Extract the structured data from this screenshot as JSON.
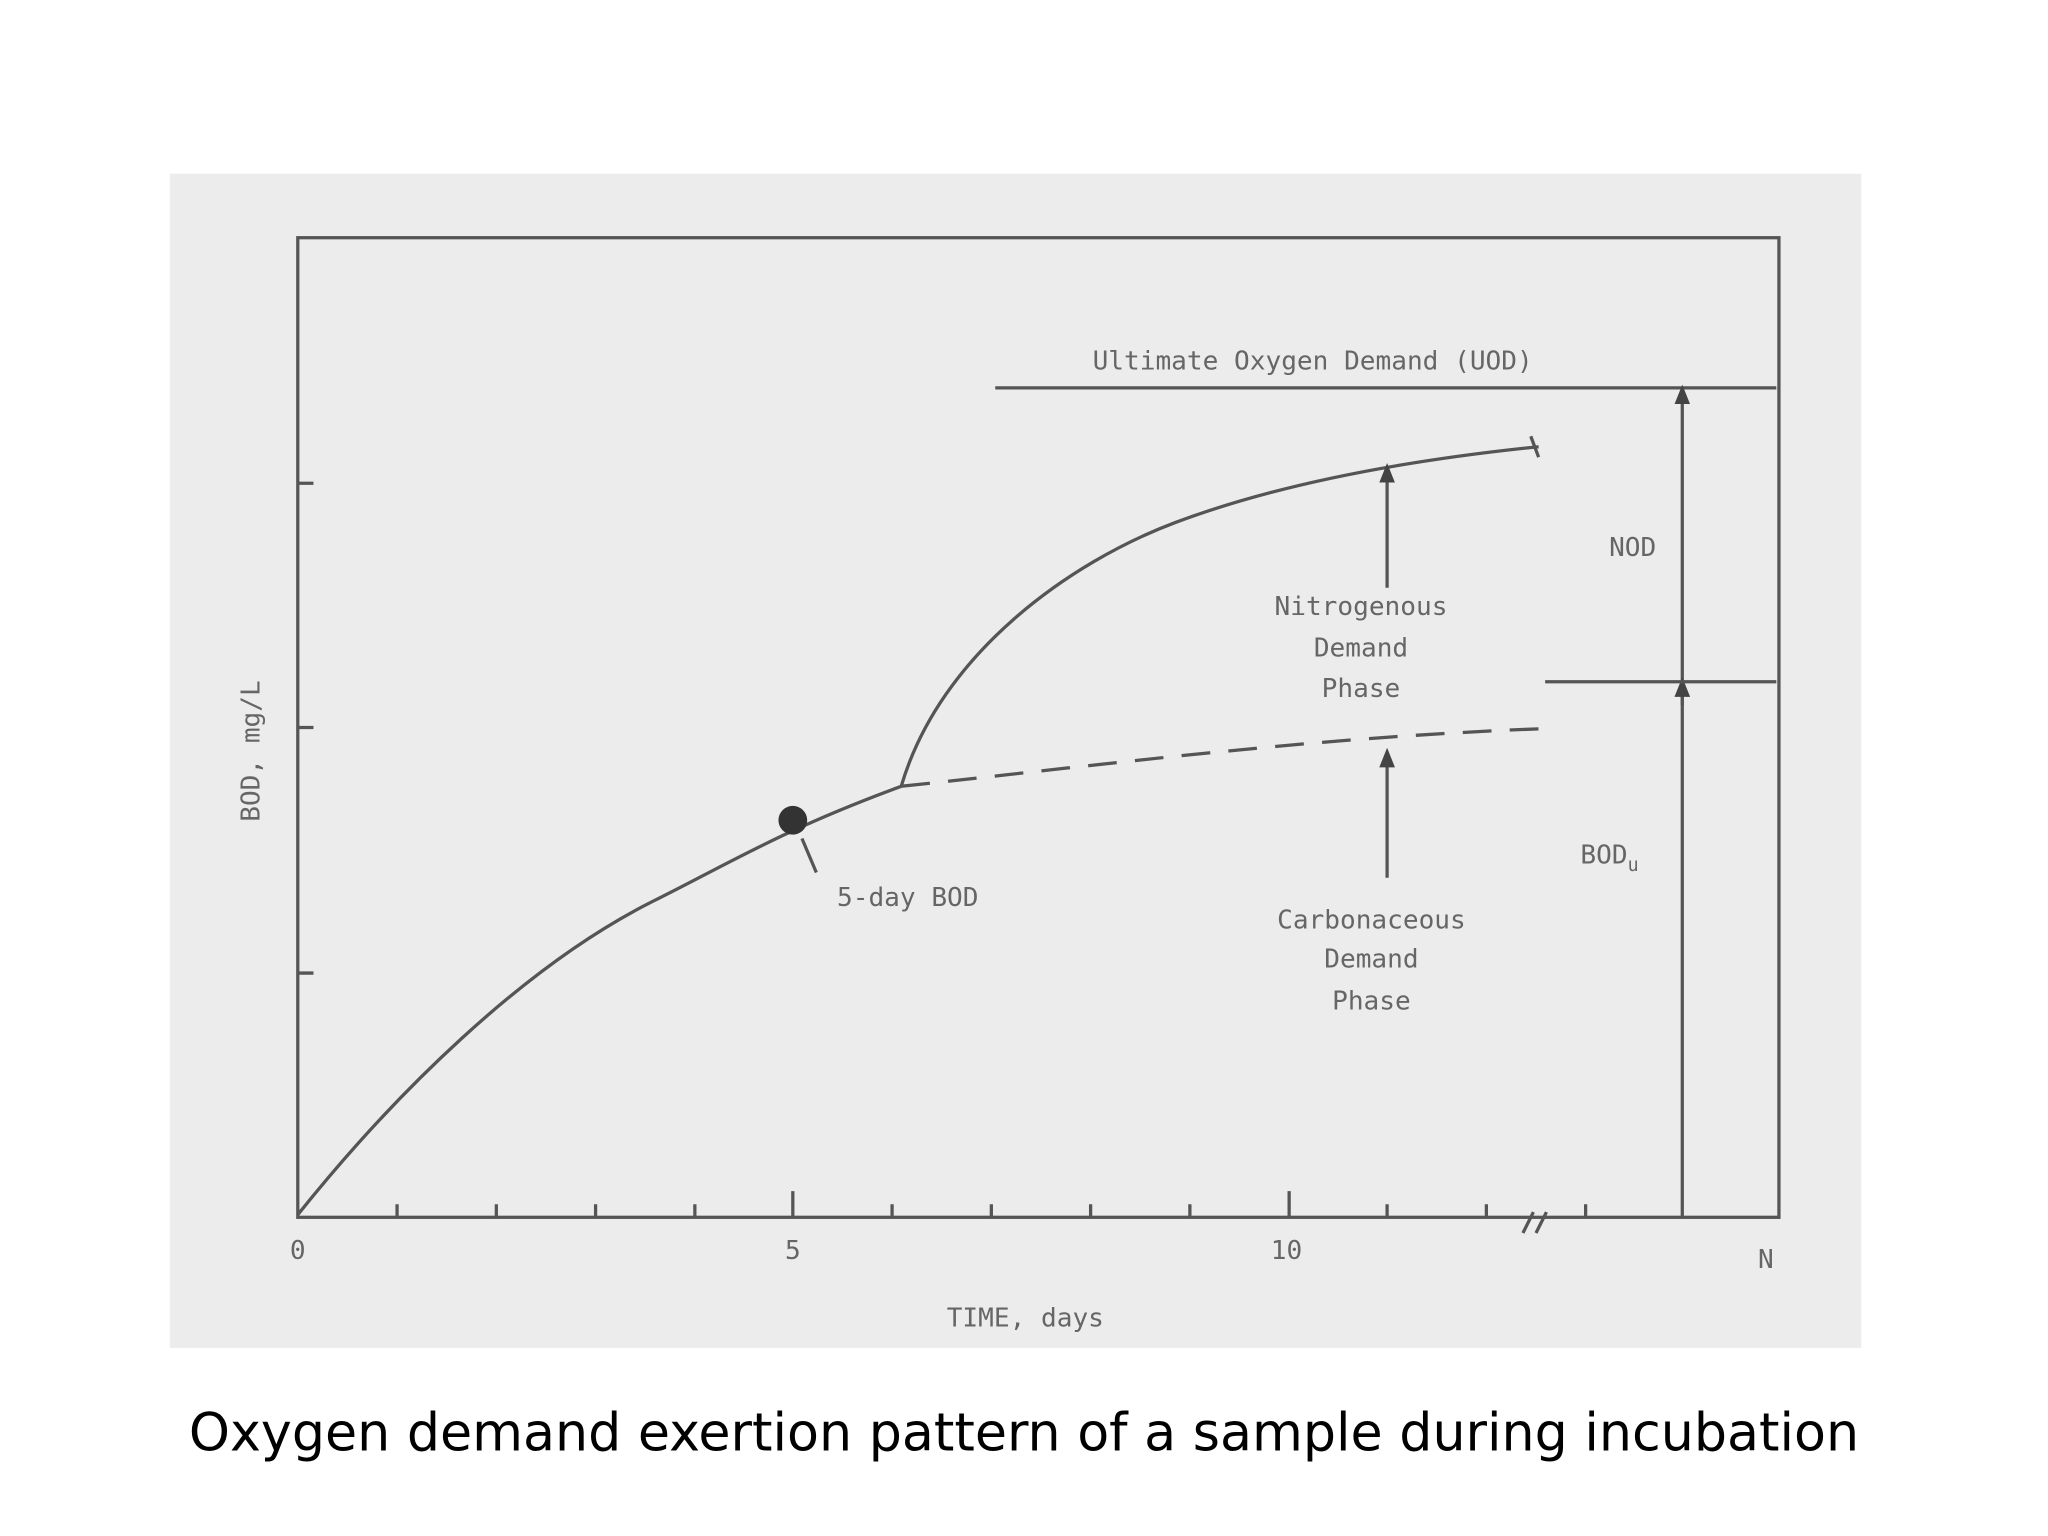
{
  "figure": {
    "uod_label": "Ultimate Oxygen Demand (UOD)",
    "x_axis": {
      "label": "TIME, days",
      "ticks": [
        "0",
        "5",
        "10",
        "N"
      ]
    },
    "y_axis": {
      "label": "BOD, mg/L"
    },
    "point_label": "5-day BOD",
    "nitrogenous": [
      "Nitrogenous",
      "Demand",
      "Phase"
    ],
    "carbonaceous": [
      "Carbonaceous",
      "Demand",
      "Phase"
    ],
    "nod_label": "NOD",
    "bodu_label": {
      "main": "BOD",
      "sub": "u"
    }
  },
  "caption": "Oxygen demand exertion pattern of a sample during incubation"
}
